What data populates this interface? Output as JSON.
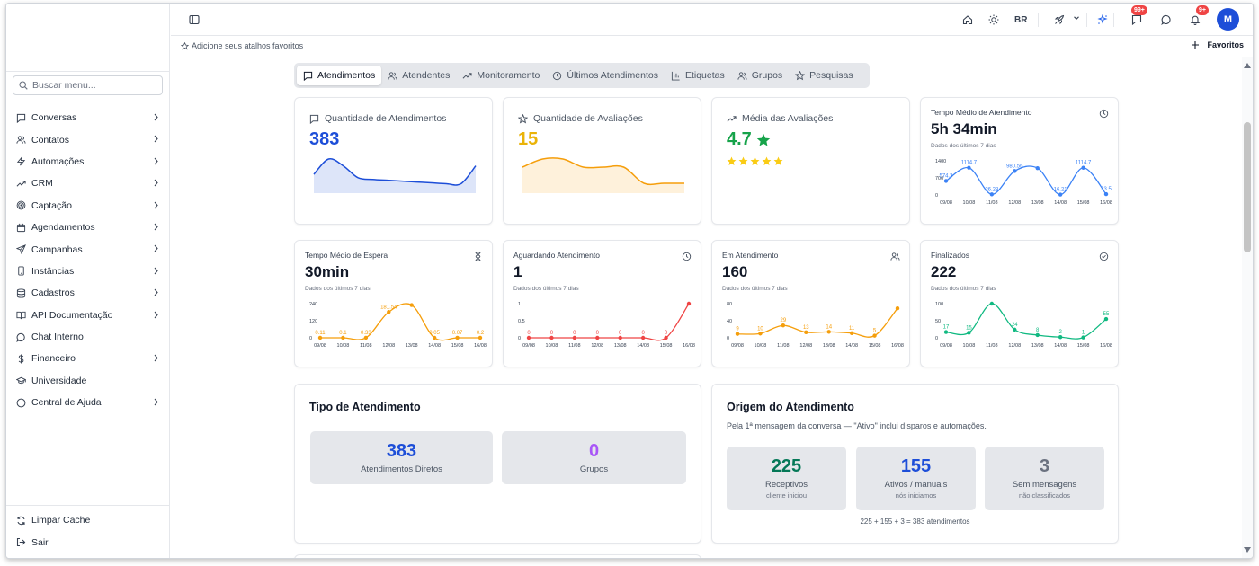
{
  "sidebar": {
    "search_placeholder": "Buscar menu...",
    "items": [
      {
        "label": "Conversas",
        "chevron": true
      },
      {
        "label": "Contatos",
        "chevron": true
      },
      {
        "label": "Automações",
        "chevron": true
      },
      {
        "label": "CRM",
        "chevron": true
      },
      {
        "label": "Captação",
        "chevron": true
      },
      {
        "label": "Agendamentos",
        "chevron": true
      },
      {
        "label": "Campanhas",
        "chevron": true
      },
      {
        "label": "Instâncias",
        "chevron": true
      },
      {
        "label": "Cadastros",
        "chevron": true
      },
      {
        "label": "API Documentação",
        "chevron": true
      },
      {
        "label": "Chat Interno",
        "chevron": false
      },
      {
        "label": "Financeiro",
        "chevron": true
      },
      {
        "label": "Universidade",
        "chevron": false
      },
      {
        "label": "Central de Ajuda",
        "chevron": true
      }
    ],
    "footer": [
      {
        "label": "Limpar Cache"
      },
      {
        "label": "Sair"
      }
    ]
  },
  "topbar": {
    "lang": "BR",
    "badge_messages": "99+",
    "badge_notifications": "9+",
    "avatar": "M"
  },
  "favbar": {
    "hint": "Adicione seus atalhos favoritos",
    "favorites_label": "Favoritos"
  },
  "tabs": [
    "Atendimentos",
    "Atendentes",
    "Monitoramento",
    "Últimos Atendimentos",
    "Etiquetas",
    "Grupos",
    "Pesquisas"
  ],
  "kpi": {
    "qtd_atend": {
      "title": "Quantidade de Atendimentos",
      "value": "383",
      "color": "#1d4ed8"
    },
    "qtd_aval": {
      "title": "Quantidade de Avaliações",
      "value": "15",
      "color": "#eab308"
    },
    "media_aval": {
      "title": "Média das Avaliações",
      "value": "4.7",
      "color": "#16a34a",
      "stars": 5
    }
  },
  "small_cards": {
    "subtitle": "Dados dos últimos 7 dias",
    "tempo_medio": {
      "title": "Tempo Médio de Atendimento",
      "value": "5h 34min",
      "color": "#3b82f6"
    },
    "espera": {
      "title": "Tempo Médio de Espera",
      "value": "30min",
      "color": "#f59e0b"
    },
    "aguardando": {
      "title": "Aguardando Atendimento",
      "value": "1",
      "color": "#ef4444"
    },
    "em_atend": {
      "title": "Em Atendimento",
      "value": "160",
      "color": "#f59e0b"
    },
    "finalizados": {
      "title": "Finalizados",
      "value": "222",
      "color": "#10b981"
    }
  },
  "chart_data": [
    {
      "type": "area",
      "id": "qtd_atend",
      "values": [
        20,
        38,
        30,
        16,
        14,
        13,
        12,
        11,
        10,
        9,
        9,
        30
      ],
      "color": "#1d4ed8"
    },
    {
      "type": "area",
      "id": "qtd_aval",
      "values": [
        3,
        4,
        4,
        3,
        3,
        3,
        1,
        1,
        1
      ],
      "color": "#f59e0b"
    },
    {
      "type": "line",
      "id": "tempo_medio",
      "x": [
        "09/08",
        "10/08",
        "11/08",
        "12/08",
        "13/08",
        "14/08",
        "15/08",
        "16/08"
      ],
      "values": [
        574.3,
        1114.7,
        26.28,
        980.56,
        1100,
        16.21,
        1114.7,
        33.5
      ],
      "labels": [
        "574.3",
        "1114.7",
        "26.28",
        "980.56",
        "",
        "16.21",
        "1114.7",
        "33.5"
      ],
      "yticks": [
        "1400",
        "700",
        "0"
      ],
      "ylim": [
        0,
        1400
      ]
    },
    {
      "type": "line",
      "id": "espera",
      "x": [
        "09/08",
        "10/08",
        "11/08",
        "12/08",
        "13/08",
        "14/08",
        "15/08",
        "16/08"
      ],
      "values": [
        0.11,
        0.1,
        0.33,
        181.54,
        230,
        0.05,
        0.07,
        0.2
      ],
      "labels": [
        "0.11",
        "0.1",
        "0.33",
        "181.54",
        "",
        "0.05",
        "0.07",
        "0.2"
      ],
      "yticks": [
        "240",
        "120",
        "0"
      ],
      "ylim": [
        0,
        240
      ]
    },
    {
      "type": "line",
      "id": "aguardando",
      "x": [
        "09/08",
        "10/08",
        "11/08",
        "12/08",
        "13/08",
        "14/08",
        "15/08",
        "16/08"
      ],
      "values": [
        0,
        0,
        0,
        0,
        0,
        0,
        0,
        1
      ],
      "labels": [
        "0",
        "0",
        "0",
        "0",
        "0",
        "0",
        "0",
        ""
      ],
      "yticks": [
        "1",
        "0.5",
        "0"
      ],
      "ylim": [
        0,
        1
      ]
    },
    {
      "type": "line",
      "id": "em_atend",
      "x": [
        "09/08",
        "10/08",
        "11/08",
        "12/08",
        "13/08",
        "14/08",
        "15/08",
        "16/08"
      ],
      "values": [
        9,
        10,
        29,
        13,
        14,
        11,
        5,
        69
      ],
      "labels": [
        "9",
        "10",
        "29",
        "13",
        "14",
        "11",
        "5",
        ""
      ],
      "yticks": [
        "80",
        "40",
        "0"
      ],
      "ylim": [
        0,
        80
      ]
    },
    {
      "type": "line",
      "id": "finalizados",
      "x": [
        "09/08",
        "10/08",
        "11/08",
        "12/08",
        "13/08",
        "14/08",
        "15/08",
        "16/08"
      ],
      "values": [
        17,
        15,
        100,
        24,
        8,
        2,
        1,
        55
      ],
      "labels": [
        "17",
        "15",
        "",
        "24",
        "8",
        "2",
        "1",
        "55"
      ],
      "yticks": [
        "100",
        "50",
        "0"
      ],
      "ylim": [
        0,
        100
      ]
    }
  ],
  "tipo": {
    "title": "Tipo de Atendimento",
    "diretos": {
      "value": "383",
      "label": "Atendimentos Diretos",
      "color": "#1d4ed8"
    },
    "grupos": {
      "value": "0",
      "label": "Grupos",
      "color": "#a855f7"
    }
  },
  "origem": {
    "title": "Origem do Atendimento",
    "subtitle": "Pela 1ª mensagem da conversa — \"Ativo\" inclui disparos e automações.",
    "receptivos": {
      "value": "225",
      "label": "Receptivos",
      "hint": "cliente iniciou",
      "color": "#047857"
    },
    "ativos": {
      "value": "155",
      "label": "Ativos / manuais",
      "hint": "nós iniciamos",
      "color": "#1d4ed8"
    },
    "sem": {
      "value": "3",
      "label": "Sem mensagens",
      "hint": "não classificados",
      "color": "#6b7280"
    },
    "total": "225 + 155 + 3 = 383 atendimentos"
  }
}
